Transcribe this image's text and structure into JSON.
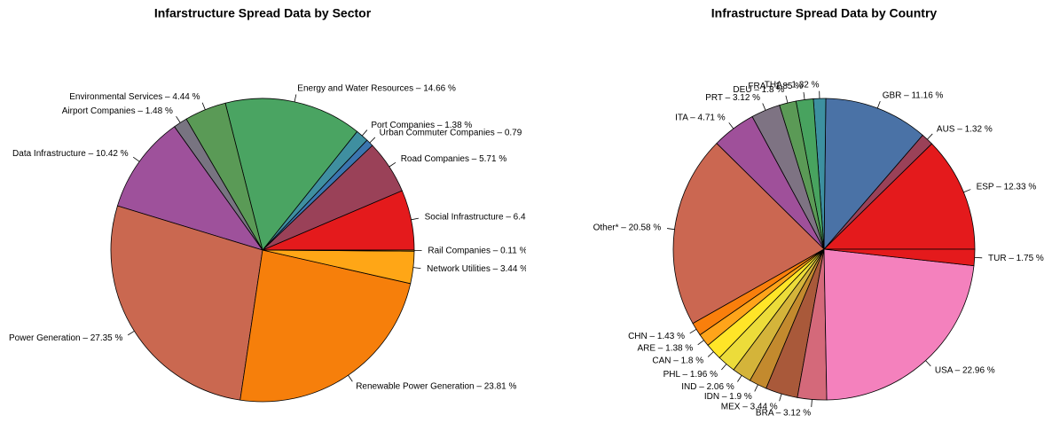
{
  "chart_data": [
    {
      "type": "pie",
      "title": "Infarstructure Spread Data by Sector",
      "categories": [
        "Social Infrastructure – 6.4",
        "Road Companies – 5.71 %",
        "Urban Commuter Companies – 0.79",
        "Port Companies – 1.38 %",
        "Energy and Water Resources – 14.66 %",
        "Environmental Services – 4.44 %",
        "Airport Companies – 1.48 %",
        "Data Infrastructure – 10.42 %",
        "Power Generation – 27.35 %",
        "Renewable Power Generation – 23.81 %",
        "Network Utilities – 3.44 %",
        "Rail Companies – 0.11 %"
      ],
      "values": [
        6.41,
        5.71,
        0.79,
        1.38,
        14.66,
        4.44,
        1.48,
        10.42,
        27.35,
        23.81,
        3.44,
        0.11
      ],
      "colors": [
        "#e41a1c",
        "#9a4158",
        "#3b75af",
        "#3f8fa0",
        "#4aa462",
        "#5a9a56",
        "#787481",
        "#9e519b",
        "#ca6850",
        "#f67f0b",
        "#ffa616",
        "#ffc21f"
      ]
    },
    {
      "type": "pie",
      "title": "Infrastructure Spread Data by Country",
      "categories": [
        "ESP – 12.33 %",
        "AUS – 1.32 %",
        "GBR – 11.16 %",
        "THA – 1.32 %",
        "FRA – 1.85 %",
        "DEU – 1.8 %",
        "PRT – 3.12 %",
        "ITA – 4.71 %",
        "Other* – 20.58 %",
        "CHN – 1.43 %",
        "ARE – 1.38 %",
        "CAN – 1.8 %",
        "PHL – 1.96 %",
        "IND – 2.06 %",
        "IDN – 1.9 %",
        "MEX – 3.44 %",
        "BRA – 3.12 %",
        "USA – 22.96 %",
        "TUR – 1.75 %"
      ],
      "values": [
        12.33,
        1.32,
        11.16,
        1.32,
        1.85,
        1.8,
        3.12,
        4.71,
        20.58,
        1.43,
        1.38,
        1.8,
        1.96,
        2.06,
        1.9,
        3.44,
        3.12,
        22.96,
        1.75
      ],
      "colors": [
        "#e41a1c",
        "#9a4158",
        "#4a72a6",
        "#3d90a0",
        "#48a35f",
        "#5b9a56",
        "#7e7383",
        "#9f509a",
        "#cb6751",
        "#f97f0c",
        "#ffa41a",
        "#ffe528",
        "#ecdc3a",
        "#d4b43a",
        "#c38a2e",
        "#a9593a",
        "#d4697a",
        "#f481bd",
        "#e41a1c"
      ]
    }
  ]
}
